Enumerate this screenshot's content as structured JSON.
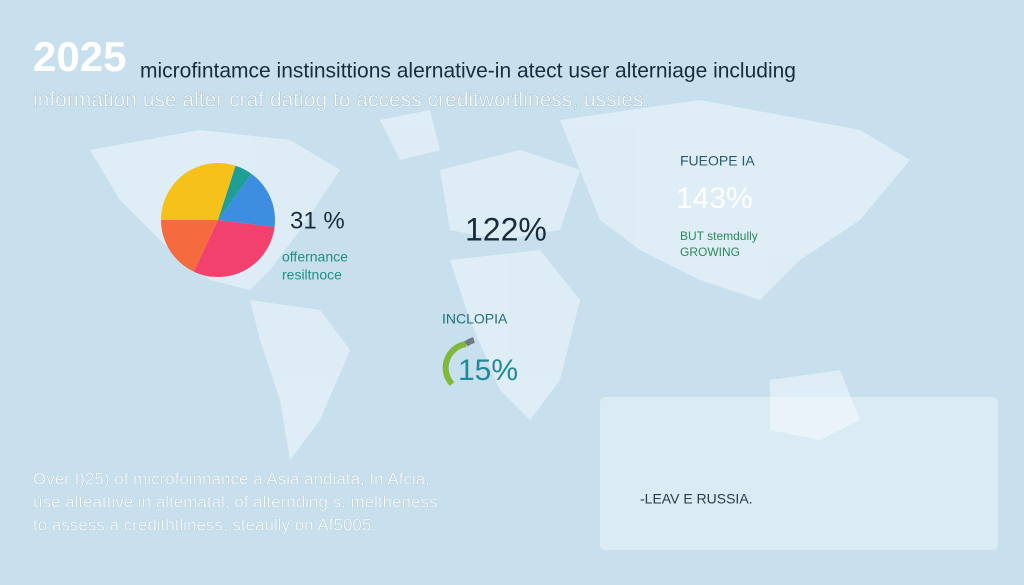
{
  "header": {
    "year": "2025",
    "line1": "microfintamce instinsittions alernative-in atect user alterniage including",
    "line2": "information use alter craf datiog to access creditwortliness, ussies."
  },
  "pie_chart": {
    "type": "pie",
    "values": [
      30,
      5,
      17,
      30,
      18
    ],
    "colors": [
      "#f6c21a",
      "#1f9e96",
      "#3d8de0",
      "#f2416c",
      "#f56a3e"
    ]
  },
  "stats": {
    "americas": {
      "value": "31 %",
      "line1": "offernance",
      "line2": "resiltnoce"
    },
    "center": {
      "value": "122%"
    },
    "europe": {
      "label": "FUEOPE IA",
      "value": "143%",
      "line1": "BUT stemdully",
      "line2": "GROWING"
    },
    "africa": {
      "label": "INCLOPIA",
      "value": "15%"
    }
  },
  "paragraph": [
    "Over I)25) of microfoinnance a Asia andiata, In Afcia,",
    "use alteattive in altematal, of alternding s. meltheness",
    "to assess a credithtliness, steaully on Af5005."
  ],
  "box": {
    "text": "-LEAV E RUSSIA."
  }
}
